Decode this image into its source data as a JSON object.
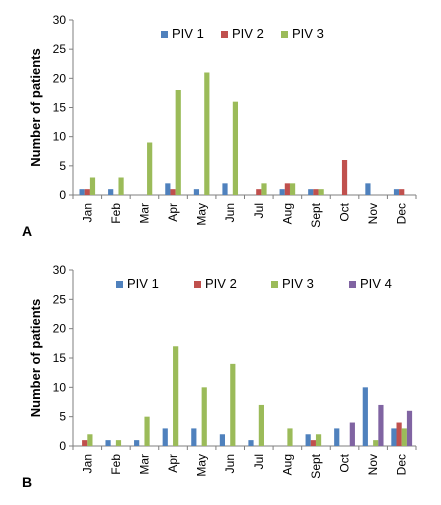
{
  "figure": {
    "panels": [
      "A",
      "B"
    ]
  },
  "chart_data": [
    {
      "type": "bar",
      "panel_label": "A",
      "ylabel": "Number of patients",
      "xlabel": "",
      "title": "",
      "ylim": [
        0,
        30
      ],
      "yticks": [
        0,
        5,
        10,
        15,
        20,
        25,
        30
      ],
      "grid": false,
      "legend_position": "top",
      "categories": [
        "Jan",
        "Feb",
        "Mar",
        "Apr",
        "May",
        "Jun",
        "Jul",
        "Aug",
        "Sept",
        "Oct",
        "Nov",
        "Dec"
      ],
      "series": [
        {
          "name": "PIV 1",
          "color": "#4f81bd",
          "values": [
            1,
            1,
            0,
            2,
            1,
            2,
            0,
            1,
            1,
            0,
            2,
            1
          ]
        },
        {
          "name": "PIV 2",
          "color": "#c0504d",
          "values": [
            1,
            0,
            0,
            1,
            0,
            0,
            1,
            2,
            1,
            6,
            0,
            1
          ]
        },
        {
          "name": "PIV  3",
          "color": "#9bbb59",
          "values": [
            3,
            3,
            9,
            18,
            21,
            16,
            2,
            2,
            1,
            0,
            0,
            0
          ]
        }
      ]
    },
    {
      "type": "bar",
      "panel_label": "B",
      "ylabel": "Number of patients",
      "xlabel": "",
      "title": "",
      "ylim": [
        0,
        30
      ],
      "yticks": [
        0,
        5,
        10,
        15,
        20,
        25,
        30
      ],
      "grid": false,
      "legend_position": "top",
      "categories": [
        "Jan",
        "Feb",
        "Mar",
        "Apr",
        "May",
        "Jun",
        "Jul",
        "Aug",
        "Sept",
        "Oct",
        "Nov",
        "Dec"
      ],
      "series": [
        {
          "name": "PIV 1",
          "color": "#4f81bd",
          "values": [
            0,
            1,
            1,
            3,
            3,
            2,
            1,
            0,
            2,
            3,
            10,
            3
          ]
        },
        {
          "name": "PIV 2",
          "color": "#c0504d",
          "values": [
            1,
            0,
            0,
            0,
            0,
            0,
            0,
            0,
            1,
            0,
            0,
            4
          ]
        },
        {
          "name": "PIV  3",
          "color": "#9bbb59",
          "values": [
            2,
            1,
            5,
            17,
            10,
            14,
            7,
            3,
            2,
            0,
            1,
            3
          ]
        },
        {
          "name": "PIV 4",
          "color": "#8064a2",
          "values": [
            0,
            0,
            0,
            0,
            0,
            0,
            0,
            0,
            0,
            4,
            7,
            6
          ]
        }
      ]
    }
  ]
}
